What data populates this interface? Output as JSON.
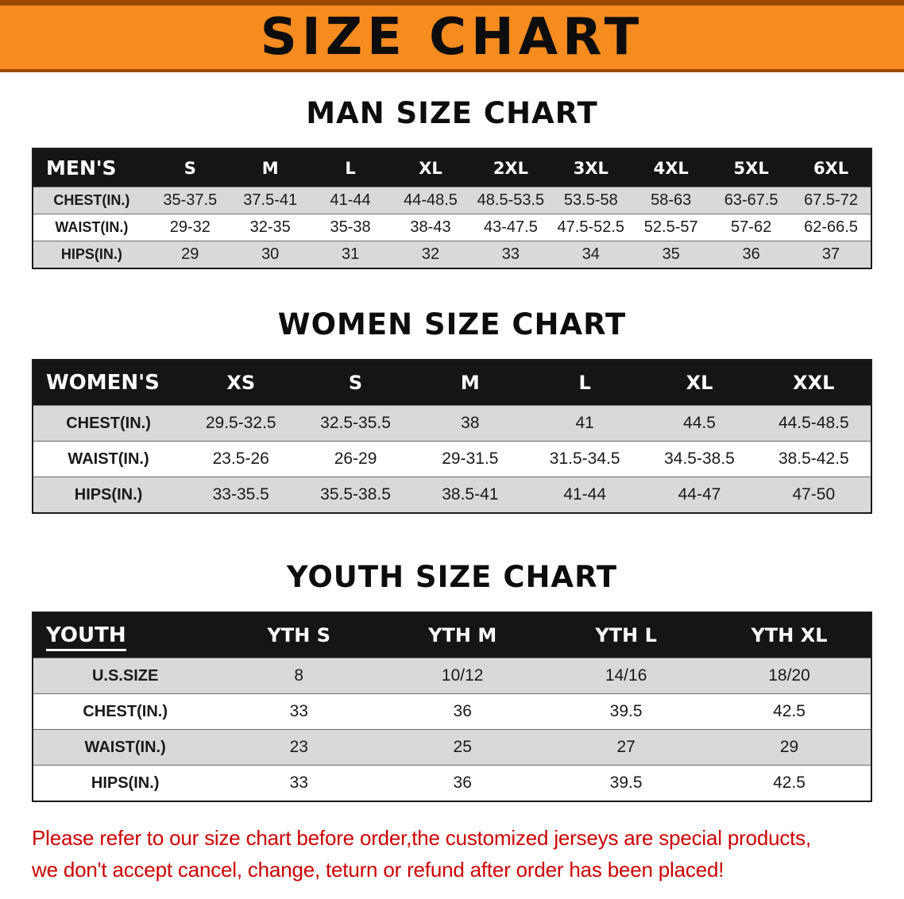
{
  "banner": {
    "title": "SIZE CHART"
  },
  "colors": {
    "banner-bg": "#f68b1f",
    "banner-edge": "#9c4a00",
    "table-header-bg": "#151515",
    "stripe": "#d9d9d9",
    "footer-text": "#cc0000"
  },
  "chart_data": [
    {
      "type": "table",
      "title": "MAN SIZE CHART",
      "corner": "MEN'S",
      "columns": [
        "S",
        "M",
        "L",
        "XL",
        "2XL",
        "3XL",
        "4XL",
        "5XL",
        "6XL"
      ],
      "rows": [
        {
          "label": "CHEST(IN.)",
          "values": [
            "35-37.5",
            "37.5-41",
            "41-44",
            "44-48.5",
            "48.5-53.5",
            "53.5-58",
            "58-63",
            "63-67.5",
            "67.5-72"
          ]
        },
        {
          "label": "WAIST(IN.)",
          "values": [
            "29-32",
            "32-35",
            "35-38",
            "38-43",
            "43-47.5",
            "47.5-52.5",
            "52.5-57",
            "57-62",
            "62-66.5"
          ]
        },
        {
          "label": "HIPS(IN.)",
          "values": [
            "29",
            "30",
            "31",
            "32",
            "33",
            "34",
            "35",
            "36",
            "37"
          ]
        }
      ]
    },
    {
      "type": "table",
      "title": "WOMEN SIZE CHART",
      "corner": "WOMEN'S",
      "columns": [
        "XS",
        "S",
        "M",
        "L",
        "XL",
        "XXL"
      ],
      "rows": [
        {
          "label": "CHEST(IN.)",
          "values": [
            "29.5-32.5",
            "32.5-35.5",
            "38",
            "41",
            "44.5",
            "44.5-48.5"
          ]
        },
        {
          "label": "WAIST(IN.)",
          "values": [
            "23.5-26",
            "26-29",
            "29-31.5",
            "31.5-34.5",
            "34.5-38.5",
            "38.5-42.5"
          ]
        },
        {
          "label": "HIPS(IN.)",
          "values": [
            "33-35.5",
            "35.5-38.5",
            "38.5-41",
            "41-44",
            "44-47",
            "47-50"
          ]
        }
      ]
    },
    {
      "type": "table",
      "title": "YOUTH SIZE CHART",
      "corner": "YOUTH",
      "columns": [
        "YTH S",
        "YTH M",
        "YTH L",
        "YTH XL"
      ],
      "rows": [
        {
          "label": "U.S.SIZE",
          "values": [
            "8",
            "10/12",
            "14/16",
            "18/20"
          ]
        },
        {
          "label": "CHEST(IN.)",
          "values": [
            "33",
            "36",
            "39.5",
            "42.5"
          ]
        },
        {
          "label": "WAIST(IN.)",
          "values": [
            "23",
            "25",
            "27",
            "29"
          ]
        },
        {
          "label": "HIPS(IN.)",
          "values": [
            "33",
            "36",
            "39.5",
            "42.5"
          ]
        }
      ]
    }
  ],
  "footer": {
    "lines": [
      "Please refer to our size chart before order,the customized jerseys are special products,",
      "we don't accept cancel, change, teturn or refund after order has been placed!"
    ]
  }
}
